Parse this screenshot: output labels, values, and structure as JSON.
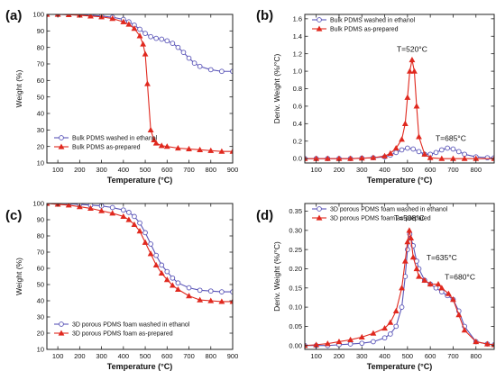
{
  "figure": {
    "panel_labels": [
      "(a)",
      "(b)",
      "(c)",
      "(d)"
    ]
  },
  "colors": {
    "washed": "#5b56b8",
    "as_prepared": "#e0291f",
    "axis": "#222222",
    "text": "#111111"
  },
  "chart_data": [
    {
      "panel": "(a)",
      "type": "line",
      "xlabel": "Temperature (°C)",
      "ylabel": "Weight (%)",
      "xlim": [
        50,
        900
      ],
      "ylim": [
        10,
        100
      ],
      "xticks": [
        100,
        200,
        300,
        400,
        500,
        600,
        700,
        800,
        900
      ],
      "yticks": [
        10,
        20,
        30,
        40,
        50,
        60,
        70,
        80,
        90,
        100
      ],
      "legend_position": "bottom-left",
      "series": [
        {
          "name": "Bulk PDMS washed in ethanol",
          "marker": "circle",
          "color": "#5b56b8",
          "x": [
            50,
            100,
            150,
            200,
            250,
            300,
            350,
            400,
            425,
            450,
            475,
            500,
            525,
            550,
            575,
            600,
            625,
            650,
            675,
            700,
            725,
            750,
            800,
            850,
            900
          ],
          "y": [
            100,
            100,
            99.9,
            99.8,
            99.5,
            99,
            98.3,
            97,
            95.5,
            93.5,
            91,
            88.5,
            86.5,
            85.5,
            85,
            84,
            82.5,
            80,
            77,
            73.5,
            70.5,
            68.5,
            66.5,
            65.5,
            65.5
          ]
        },
        {
          "name": "Bulk PDMS as-prepared",
          "marker": "triangle",
          "color": "#e0291f",
          "x": [
            50,
            100,
            150,
            200,
            250,
            300,
            350,
            400,
            425,
            450,
            475,
            490,
            500,
            510,
            525,
            540,
            550,
            575,
            600,
            650,
            700,
            750,
            800,
            850,
            900
          ],
          "y": [
            100,
            100,
            99.8,
            99.5,
            99,
            98.5,
            97.5,
            95.5,
            94,
            91.5,
            87,
            82,
            76,
            58,
            30,
            24,
            22,
            20.5,
            20,
            19,
            18.5,
            18,
            17.5,
            17,
            17
          ]
        }
      ]
    },
    {
      "panel": "(b)",
      "type": "line",
      "xlabel": "Temperature (°C)",
      "ylabel": "Deriv. Weight (%/°C)",
      "xlim": [
        50,
        880
      ],
      "ylim": [
        -0.05,
        1.65
      ],
      "xticks": [
        100,
        200,
        300,
        400,
        500,
        600,
        700,
        800
      ],
      "yticks": [
        0.0,
        0.2,
        0.4,
        0.6,
        0.8,
        1.0,
        1.2,
        1.4,
        1.6
      ],
      "legend_position": "top-left",
      "annotations": [
        {
          "text": "T=520°C",
          "x": 520,
          "y": 1.22
        },
        {
          "text": "T=685°C",
          "x": 690,
          "y": 0.2
        }
      ],
      "series": [
        {
          "name": "Bulk PDMS washed in ethanol",
          "marker": "circle",
          "color": "#5b56b8",
          "x": [
            50,
            100,
            150,
            200,
            250,
            300,
            350,
            400,
            425,
            450,
            475,
            500,
            525,
            550,
            575,
            600,
            625,
            650,
            675,
            700,
            725,
            750,
            800,
            850,
            880
          ],
          "y": [
            0,
            0,
            0,
            0,
            0,
            0.005,
            0.01,
            0.02,
            0.04,
            0.07,
            0.1,
            0.12,
            0.11,
            0.08,
            0.05,
            0.05,
            0.07,
            0.1,
            0.12,
            0.11,
            0.08,
            0.05,
            0.02,
            0.01,
            0.01
          ]
        },
        {
          "name": "Bulk PDMS as-prepared",
          "marker": "triangle",
          "color": "#e0291f",
          "x": [
            50,
            100,
            150,
            200,
            250,
            300,
            350,
            400,
            425,
            450,
            475,
            490,
            500,
            510,
            520,
            530,
            540,
            550,
            575,
            600,
            650,
            700,
            750,
            800,
            880
          ],
          "y": [
            0,
            0,
            0,
            0,
            0,
            0.005,
            0.01,
            0.03,
            0.06,
            0.12,
            0.22,
            0.4,
            0.7,
            1.0,
            1.13,
            1.0,
            0.6,
            0.25,
            0.05,
            0.01,
            0,
            0,
            0,
            0,
            0
          ]
        }
      ]
    },
    {
      "panel": "(c)",
      "type": "line",
      "xlabel": "Temperature (°C)",
      "ylabel": "Weight (%)",
      "xlim": [
        50,
        900
      ],
      "ylim": [
        10,
        100
      ],
      "xticks": [
        100,
        200,
        300,
        400,
        500,
        600,
        700,
        800,
        900
      ],
      "yticks": [
        10,
        20,
        30,
        40,
        50,
        60,
        70,
        80,
        90,
        100
      ],
      "legend_position": "bottom-left",
      "series": [
        {
          "name": "3D porous PDMS foam washed in ethanol",
          "marker": "circle",
          "color": "#5b56b8",
          "x": [
            50,
            100,
            150,
            200,
            250,
            300,
            350,
            400,
            425,
            450,
            475,
            500,
            525,
            550,
            575,
            600,
            625,
            650,
            700,
            750,
            800,
            850,
            900
          ],
          "y": [
            100,
            100,
            99.8,
            99.5,
            99,
            98.5,
            97.5,
            96,
            94.5,
            92,
            88,
            82,
            75,
            68,
            62,
            58,
            54,
            51,
            48,
            46.5,
            46,
            45.5,
            45.5
          ]
        },
        {
          "name": "3D porous PDMS foam as-prepared",
          "marker": "triangle",
          "color": "#e0291f",
          "x": [
            50,
            100,
            150,
            200,
            250,
            300,
            350,
            400,
            425,
            450,
            475,
            500,
            525,
            550,
            575,
            600,
            625,
            650,
            700,
            750,
            800,
            850,
            900
          ],
          "y": [
            100,
            99.5,
            99,
            98,
            97,
            95.5,
            94,
            92,
            90,
            87,
            83,
            76,
            69,
            62,
            57,
            53,
            49.5,
            47,
            43,
            40.5,
            40,
            39.5,
            39.5
          ]
        }
      ]
    },
    {
      "panel": "(d)",
      "type": "line",
      "xlabel": "Temperature (°C)",
      "ylabel": "Deriv. Weight (%/°C)",
      "xlim": [
        50,
        880
      ],
      "ylim": [
        -0.01,
        0.37
      ],
      "xticks": [
        100,
        200,
        300,
        400,
        500,
        600,
        700,
        800
      ],
      "yticks": [
        0.0,
        0.05,
        0.1,
        0.15,
        0.2,
        0.25,
        0.3,
        0.35
      ],
      "legend_position": "top-left",
      "annotations": [
        {
          "text": "T=508°C",
          "x": 508,
          "y": 0.325
        },
        {
          "text": "T=635°C",
          "x": 650,
          "y": 0.222
        },
        {
          "text": "T=680°C",
          "x": 730,
          "y": 0.172
        }
      ],
      "series": [
        {
          "name": "3D porous PDMS foam washed in ethanol",
          "marker": "circle",
          "color": "#5b56b8",
          "x": [
            50,
            100,
            150,
            200,
            250,
            300,
            350,
            400,
            425,
            450,
            475,
            490,
            500,
            510,
            525,
            540,
            550,
            575,
            600,
            625,
            650,
            675,
            700,
            725,
            750,
            800,
            850,
            880
          ],
          "y": [
            0,
            0,
            0,
            0.002,
            0.004,
            0.006,
            0.01,
            0.02,
            0.03,
            0.05,
            0.1,
            0.18,
            0.25,
            0.29,
            0.26,
            0.22,
            0.2,
            0.17,
            0.16,
            0.15,
            0.14,
            0.13,
            0.12,
            0.09,
            0.05,
            0.01,
            0.004,
            0.002
          ]
        },
        {
          "name": "3D porous PDMS foam as-prepared",
          "marker": "triangle",
          "color": "#e0291f",
          "x": [
            50,
            100,
            150,
            200,
            250,
            300,
            350,
            400,
            425,
            450,
            475,
            490,
            500,
            508,
            515,
            525,
            540,
            550,
            575,
            600,
            635,
            650,
            680,
            700,
            725,
            750,
            800,
            850,
            880
          ],
          "y": [
            0,
            0.002,
            0.005,
            0.01,
            0.015,
            0.022,
            0.032,
            0.045,
            0.06,
            0.09,
            0.15,
            0.22,
            0.27,
            0.3,
            0.28,
            0.23,
            0.2,
            0.18,
            0.17,
            0.16,
            0.16,
            0.15,
            0.135,
            0.12,
            0.08,
            0.04,
            0.01,
            0.004,
            0.002
          ]
        }
      ]
    }
  ]
}
